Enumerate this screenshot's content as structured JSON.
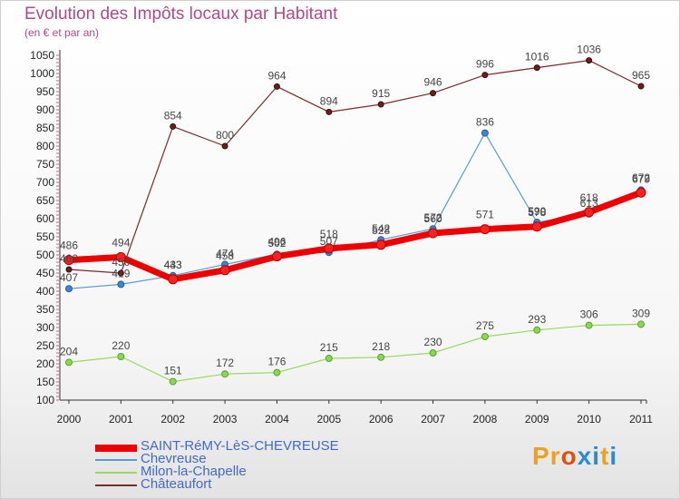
{
  "header": {
    "title": "Evolution des Impôts locaux par Habitant",
    "subtitle": "(en € et par an)"
  },
  "brand": {
    "text": "Proxiti",
    "colors": [
      "#f0a020",
      "#f0a020",
      "#e05010",
      "#2a8ad8",
      "#2a8ad8",
      "#f0a020",
      "#2a8ad8"
    ]
  },
  "chart_data": {
    "type": "line",
    "title": "Evolution des Impôts locaux par Habitant",
    "subtitle": "(en € et par an)",
    "xlabel": "",
    "ylabel": "",
    "ylim": [
      100,
      1050
    ],
    "ytick_step": 50,
    "grid": false,
    "legend_position": "bottom-left",
    "x": [
      "2000",
      "2001",
      "2002",
      "2003",
      "2004",
      "2005",
      "2006",
      "2007",
      "2008",
      "2009",
      "2010",
      "2011"
    ],
    "series": [
      {
        "name": "Châteaufort",
        "color": "#7a2a2a",
        "values": [
          460,
          450,
          854,
          800,
          964,
          894,
          915,
          946,
          996,
          1016,
          1036,
          965
        ],
        "labels": [
          "460",
          "450",
          "854",
          "800",
          "964",
          "894",
          "915",
          "946",
          "996",
          "1016",
          "1036",
          "965"
        ]
      },
      {
        "name": "Chevreuse",
        "color": "#5a9ad8",
        "values": [
          407,
          419,
          443,
          474,
          502,
          507,
          542,
          572,
          836,
          590,
          613,
          679
        ],
        "labels": [
          "407",
          "419",
          "443",
          "474",
          "502",
          "507",
          "542",
          "572",
          "836",
          "590",
          "613",
          "679"
        ]
      },
      {
        "name": "Milon-la-Chapelle",
        "color": "#9ad860",
        "values": [
          204,
          220,
          151,
          172,
          176,
          215,
          218,
          230,
          275,
          293,
          306,
          309
        ],
        "labels": [
          "204",
          "220",
          "151",
          "172",
          "176",
          "215",
          "218",
          "230",
          "275",
          "293",
          "306",
          "309"
        ]
      },
      {
        "name": "SAINT-RéMY-LèS-CHEVREUSE",
        "color": "#ee0000",
        "values": [
          486,
          494,
          433,
          458,
          496,
          518,
          528,
          560,
          571,
          578,
          618,
          672
        ],
        "labels": [
          "486",
          "494",
          "433",
          "458",
          "496",
          "518",
          "528",
          "560",
          "571",
          "578",
          "618",
          "672"
        ]
      }
    ],
    "legend_order": [
      "SAINT-RéMY-LèS-CHEVREUSE",
      "Chevreuse",
      "Milon-la-Chapelle",
      "Châteaufort"
    ]
  }
}
